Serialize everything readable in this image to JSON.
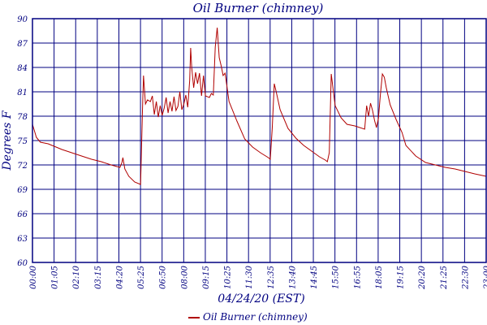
{
  "colors": {
    "frame": "#000080",
    "series": "#b00000",
    "background": "#ffffff"
  },
  "chart_data": {
    "type": "line",
    "title": "Oil Burner (chimney)",
    "xlabel": "04/24/20 (EST)",
    "ylabel": "Degrees F",
    "x_unit": "hours",
    "xlim": [
      0,
      23.083
    ],
    "ylim": [
      60,
      90
    ],
    "y_ticks": [
      60,
      63,
      66,
      69,
      72,
      75,
      78,
      81,
      84,
      87,
      90
    ],
    "y_tick_labels": [
      "60",
      "63",
      "66",
      "69",
      "72",
      "75",
      "78",
      "81",
      "84",
      "87",
      "90"
    ],
    "x_tick_labels": [
      "00:00",
      "01:05",
      "02:10",
      "03:15",
      "04:20",
      "05:25",
      "06:50",
      "08:00",
      "09:15",
      "10:25",
      "11:30",
      "12:35",
      "13:40",
      "14:45",
      "15:50",
      "16:55",
      "18:05",
      "19:15",
      "20:20",
      "21:25",
      "22:30",
      "23:00"
    ],
    "grid": true,
    "legend": "bottom",
    "series": [
      {
        "name": "Oil Burner (chimney)",
        "x": [
          0.0,
          0.2,
          0.4,
          0.6,
          0.8,
          1.0,
          1.2,
          1.5,
          2.0,
          2.5,
          3.0,
          3.5,
          4.0,
          4.3,
          4.45,
          4.55,
          4.6,
          4.7,
          4.9,
          5.2,
          5.5,
          5.6,
          5.65,
          5.75,
          5.85,
          6.0,
          6.1,
          6.2,
          6.3,
          6.4,
          6.5,
          6.6,
          6.7,
          6.8,
          6.9,
          7.0,
          7.1,
          7.2,
          7.3,
          7.4,
          7.5,
          7.6,
          7.7,
          7.8,
          7.9,
          8.0,
          8.05,
          8.1,
          8.2,
          8.3,
          8.4,
          8.5,
          8.6,
          8.7,
          8.8,
          9.0,
          9.1,
          9.2,
          9.3,
          9.4,
          9.5,
          9.6,
          9.7,
          9.8,
          10.0,
          10.4,
          10.8,
          11.2,
          11.6,
          12.0,
          12.1,
          12.2,
          12.3,
          12.4,
          12.6,
          13.0,
          13.4,
          13.8,
          14.2,
          14.6,
          14.9,
          15.0,
          15.1,
          15.2,
          15.4,
          15.7,
          16.0,
          16.4,
          16.9,
          17.0,
          17.1,
          17.2,
          17.3,
          17.4,
          17.5,
          17.6,
          17.7,
          17.8,
          17.9,
          18.0,
          18.2,
          18.5,
          18.8,
          19.0,
          19.5,
          20.0,
          20.5,
          21.0,
          21.5,
          22.0,
          22.5,
          23.083
        ],
        "values": [
          77.0,
          75.4,
          74.8,
          74.7,
          74.6,
          74.4,
          74.2,
          73.9,
          73.5,
          73.1,
          72.7,
          72.4,
          72.0,
          71.8,
          71.7,
          72.3,
          72.9,
          71.5,
          70.6,
          69.9,
          69.6,
          79.0,
          83.0,
          79.5,
          80.0,
          79.8,
          80.5,
          78.2,
          79.8,
          77.9,
          79.3,
          78.1,
          79.0,
          80.3,
          78.4,
          79.8,
          78.6,
          80.4,
          78.7,
          79.2,
          81.0,
          78.8,
          79.5,
          80.6,
          79.1,
          82.4,
          86.4,
          84.0,
          81.5,
          83.4,
          82.0,
          83.3,
          80.5,
          83.0,
          80.5,
          80.3,
          80.8,
          80.6,
          86.5,
          88.9,
          85.2,
          84.2,
          83.0,
          83.3,
          79.8,
          77.4,
          75.2,
          74.2,
          73.5,
          72.9,
          72.7,
          76.5,
          82.0,
          81.0,
          78.8,
          76.5,
          75.3,
          74.4,
          73.7,
          73.0,
          72.6,
          72.4,
          73.5,
          83.2,
          79.3,
          77.8,
          77.0,
          76.8,
          76.4,
          79.3,
          78.0,
          79.6,
          78.7,
          77.5,
          76.6,
          77.7,
          80.6,
          83.2,
          82.8,
          81.5,
          79.4,
          77.6,
          76.0,
          74.4,
          73.1,
          72.3,
          72.0,
          71.7,
          71.5,
          71.2,
          70.9,
          70.6
        ]
      }
    ]
  }
}
